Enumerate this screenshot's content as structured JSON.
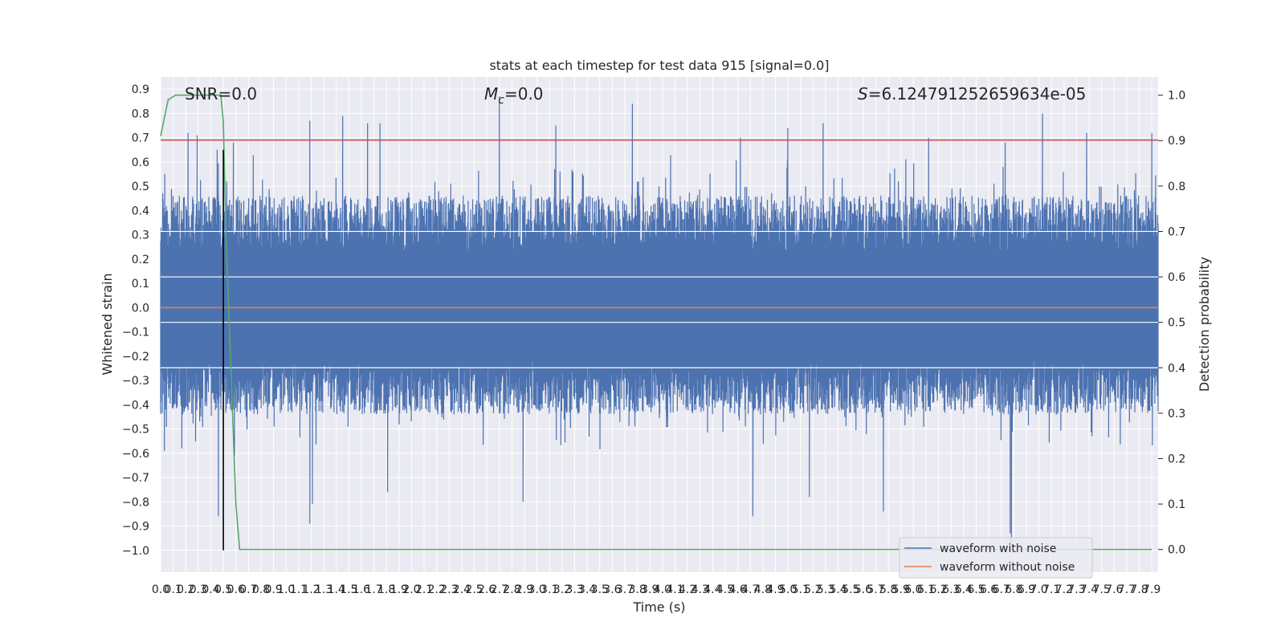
{
  "chart_data": {
    "type": "line",
    "title": "stats at each timestep for test data 915 [signal=0.0]",
    "xlabel": "Time (s)",
    "ylabel": "Whitened strain",
    "y2label": "Detection probability",
    "xlim": [
      0.0,
      7.95
    ],
    "ylim": [
      -1.09,
      0.95
    ],
    "y2lim": [
      -0.05,
      1.04
    ],
    "x_ticks": [
      0.0,
      0.1,
      0.2,
      0.3,
      0.4,
      0.5,
      0.6,
      0.7,
      0.8,
      0.9,
      1.0,
      1.1,
      1.2,
      1.3,
      1.4,
      1.5,
      1.6,
      1.7,
      1.8,
      1.9,
      2.0,
      2.1,
      2.2,
      2.3,
      2.4,
      2.5,
      2.6,
      2.7,
      2.8,
      2.9,
      3.0,
      3.1,
      3.2,
      3.3,
      3.4,
      3.5,
      3.6,
      3.7,
      3.8,
      3.9,
      4.0,
      4.1,
      4.2,
      4.3,
      4.4,
      4.5,
      4.6,
      4.7,
      4.8,
      4.9,
      5.0,
      5.1,
      5.2,
      5.3,
      5.4,
      5.5,
      5.6,
      5.7,
      5.8,
      5.9,
      6.0,
      6.1,
      6.2,
      6.3,
      6.4,
      6.5,
      6.6,
      6.7,
      6.8,
      6.9,
      7.0,
      7.1,
      7.2,
      7.3,
      7.4,
      7.5,
      7.6,
      7.7,
      7.8,
      7.9
    ],
    "x_tick_labels": [
      "0.0",
      "0.1",
      "0.2",
      "0.3",
      "0.4",
      "0.5",
      "0.6",
      "0.7",
      "0.8",
      "0.9",
      "1.0",
      "1.1",
      "1.2",
      "1.3",
      "1.4",
      "1.5",
      "1.6",
      "1.7",
      "1.8",
      "1.9",
      "2.0",
      "2.1",
      "2.2",
      "2.3",
      "2.4",
      "2.5",
      "2.6",
      "2.7",
      "2.8",
      "2.9",
      "3.0",
      "3.1",
      "3.2",
      "3.3",
      "3.4",
      "3.5",
      "3.6",
      "3.7",
      "3.8",
      "3.9",
      "4.0",
      "4.1",
      "4.2",
      "4.3",
      "4.4",
      "4.5",
      "4.6",
      "4.7",
      "4.8",
      "4.9",
      "5.0",
      "5.1",
      "5.2",
      "5.3",
      "5.4",
      "5.5",
      "5.6",
      "5.7",
      "5.8",
      "5.9",
      "6.0",
      "6.1",
      "6.2",
      "6.3",
      "6.4",
      "6.5",
      "6.6",
      "6.7",
      "6.8",
      "6.9",
      "7.0",
      "7.1",
      "7.2",
      "7.3",
      "7.4",
      "7.5",
      "7.6",
      "7.7",
      "7.8",
      "7.9"
    ],
    "y_ticks": [
      -1.0,
      -0.9,
      -0.8,
      -0.7,
      -0.6,
      -0.5,
      -0.4,
      -0.3,
      -0.2,
      -0.1,
      0.0,
      0.1,
      0.2,
      0.3,
      0.4,
      0.5,
      0.6,
      0.7,
      0.8,
      0.9
    ],
    "y_tick_labels": [
      "−1.0",
      "−0.9",
      "−0.8",
      "−0.7",
      "−0.6",
      "−0.5",
      "−0.4",
      "−0.3",
      "−0.2",
      "−0.1",
      "0.0",
      "0.1",
      "0.2",
      "0.3",
      "0.4",
      "0.5",
      "0.6",
      "0.7",
      "0.8",
      "0.9"
    ],
    "y2_ticks": [
      0.0,
      0.1,
      0.2,
      0.3,
      0.4,
      0.5,
      0.6,
      0.7,
      0.8,
      0.9,
      1.0
    ],
    "y2_tick_labels": [
      "0.0",
      "0.1",
      "0.2",
      "0.3",
      "0.4",
      "0.5",
      "0.6",
      "0.7",
      "0.8",
      "0.9",
      "1.0"
    ],
    "grid": true,
    "annotations": {
      "snr": "SNR=0.0",
      "mc_symbol": "M",
      "mc_sub": "c",
      "mc_value": "=0.0",
      "s_symbol": "S",
      "s_value": "=6.124791252659634e-05"
    },
    "legend": {
      "placement": "lower-right",
      "entries": [
        {
          "label": "waveform with noise",
          "color": "#4c72b0"
        },
        {
          "label": "waveform without noise",
          "color": "#dd8452"
        }
      ]
    },
    "noise_envelope": {
      "description_free": true,
      "upper_typical": 0.42,
      "lower_typical": -0.4,
      "upper_peaks": [
        [
          0.22,
          0.72
        ],
        [
          0.29,
          0.71
        ],
        [
          0.45,
          0.65
        ],
        [
          0.58,
          0.68
        ],
        [
          1.19,
          0.77
        ],
        [
          1.45,
          0.79
        ],
        [
          1.65,
          0.76
        ],
        [
          1.75,
          0.76
        ],
        [
          2.7,
          0.87
        ],
        [
          3.15,
          0.75
        ],
        [
          3.76,
          0.84
        ],
        [
          4.62,
          0.7
        ],
        [
          5.0,
          0.74
        ],
        [
          5.28,
          0.76
        ],
        [
          6.12,
          0.7
        ],
        [
          6.73,
          0.68
        ],
        [
          7.03,
          0.8
        ],
        [
          7.38,
          0.72
        ],
        [
          7.9,
          0.72
        ]
      ],
      "lower_peaks": [
        [
          0.03,
          -0.59
        ],
        [
          0.46,
          -0.86
        ],
        [
          0.59,
          -0.61
        ],
        [
          1.19,
          -0.89
        ],
        [
          1.21,
          -0.81
        ],
        [
          1.81,
          -0.76
        ],
        [
          2.89,
          -0.8
        ],
        [
          4.72,
          -0.86
        ],
        [
          5.17,
          -0.78
        ],
        [
          5.76,
          -0.84
        ],
        [
          6.77,
          -0.93
        ],
        [
          6.78,
          -0.97
        ]
      ]
    },
    "series": [
      {
        "name": "waveform with noise",
        "color": "#4c72b0",
        "axis": "left",
        "style": "noise"
      },
      {
        "name": "waveform without noise",
        "color": "#dd8452",
        "axis": "left",
        "x": [
          0.0,
          7.95
        ],
        "y": [
          0.0,
          0.0
        ]
      },
      {
        "color": "#c44e52",
        "axis": "left",
        "x": [
          0.0,
          7.95
        ],
        "y": [
          0.69,
          0.69
        ]
      },
      {
        "color": "#55a868",
        "axis": "right",
        "x": [
          0.0,
          0.06,
          0.12,
          0.18,
          0.24,
          0.3,
          0.36,
          0.42,
          0.48,
          0.5,
          0.52,
          0.56,
          0.6,
          0.63,
          0.68,
          0.75,
          7.9
        ],
        "y": [
          0.91,
          0.99,
          1.0,
          1.0,
          1.0,
          1.0,
          1.0,
          1.0,
          1.0,
          0.94,
          0.7,
          0.4,
          0.1,
          0.0,
          0.0,
          0.0,
          0.0
        ]
      },
      {
        "color": "#000000",
        "axis": "left",
        "x": [
          0.5,
          0.5
        ],
        "y": [
          -1.0,
          0.65
        ]
      }
    ],
    "colors": {
      "background": "#eaeaf2",
      "grid": "#ffffff",
      "text": "#262626",
      "legend_bg": "#eaeaf2",
      "legend_border": "#cccccc"
    }
  }
}
